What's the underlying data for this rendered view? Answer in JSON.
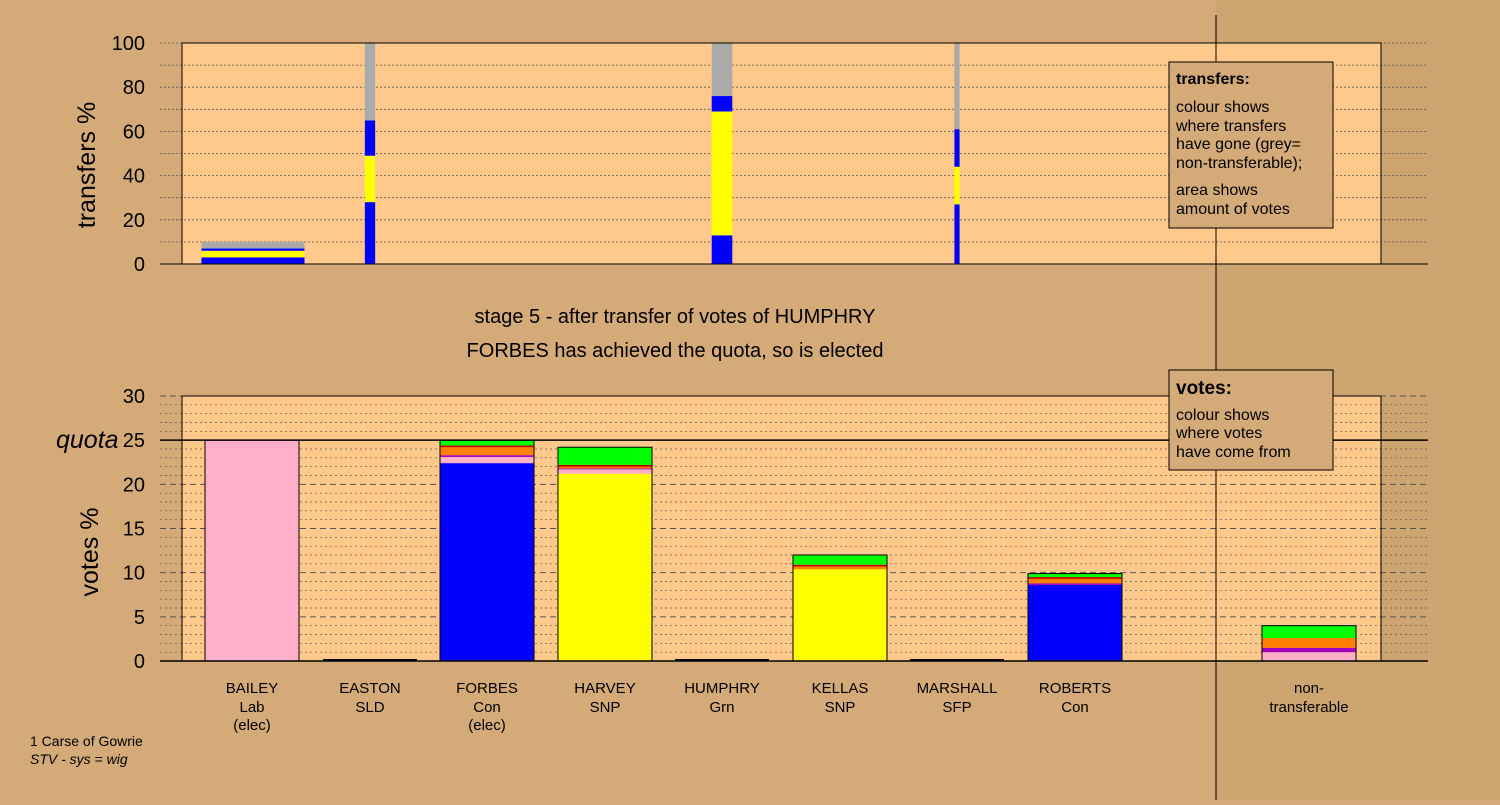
{
  "colors": {
    "background": "#d4aa78",
    "plot_bg": "#ffc98b",
    "Con": "#0000ff",
    "SNP": "#ffff00",
    "Lab": "#ffb0c8",
    "Grn": "#00ff00",
    "SFP": "#ff8000",
    "SLD": "#c00000",
    "other": "#a000c0",
    "nontransferable": "#aaaaaa"
  },
  "caption": {
    "line1": "stage 5 - after transfer of votes of HUMPHRY",
    "line2": "FORBES has achieved the quota, so is elected"
  },
  "legend_transfers": {
    "heading": "transfers:",
    "lines": [
      "colour shows",
      "where transfers",
      "have gone (grey=",
      "non-transferable);",
      "area shows",
      "amount of votes"
    ]
  },
  "legend_votes": {
    "heading": "votes:",
    "lines": [
      "colour shows",
      "where votes",
      "have come from"
    ]
  },
  "footer": {
    "line1": "1 Carse of Gowrie",
    "line2": "STV - sys = wig"
  },
  "candidates": [
    {
      "name": "BAILEY",
      "party": "Lab",
      "status": "(elec)"
    },
    {
      "name": "EASTON",
      "party": "SLD",
      "status": ""
    },
    {
      "name": "FORBES",
      "party": "Con",
      "status": "(elec)"
    },
    {
      "name": "HARVEY",
      "party": "SNP",
      "status": ""
    },
    {
      "name": "HUMPHRY",
      "party": "Grn",
      "status": ""
    },
    {
      "name": "KELLAS",
      "party": "SNP",
      "status": ""
    },
    {
      "name": "MARSHALL",
      "party": "SFP",
      "status": ""
    },
    {
      "name": "ROBERTS",
      "party": "Con",
      "status": ""
    }
  ],
  "nontransferable_label": {
    "line1": "non-",
    "line2": "transferable"
  },
  "chart_data": [
    {
      "type": "bar",
      "ylabel": "transfers %",
      "ylim": [
        0,
        100
      ],
      "yticks": [
        0,
        20,
        40,
        60,
        80,
        100
      ],
      "grid": true,
      "bars": [
        {
          "candidate": "BAILEY",
          "width_share": 0.1,
          "segments": [
            {
              "color": "Con",
              "value": 3
            },
            {
              "color": "SNP",
              "value": 3
            },
            {
              "color": "Con",
              "value": 1
            },
            {
              "color": "nontransferable",
              "value": 3
            }
          ]
        },
        {
          "candidate": "EASTON",
          "width_share": 0.01,
          "segments": [
            {
              "color": "Con",
              "value": 28
            },
            {
              "color": "SNP",
              "value": 21
            },
            {
              "color": "Con",
              "value": 16
            },
            {
              "color": "nontransferable",
              "value": 35
            }
          ]
        },
        {
          "candidate": "HUMPHRY",
          "width_share": 0.02,
          "segments": [
            {
              "color": "Con",
              "value": 13
            },
            {
              "color": "SNP",
              "value": 56
            },
            {
              "color": "Con",
              "value": 7
            },
            {
              "color": "nontransferable",
              "value": 24
            }
          ]
        },
        {
          "candidate": "MARSHALL",
          "width_share": 0.005,
          "segments": [
            {
              "color": "Con",
              "value": 27
            },
            {
              "color": "SNP",
              "value": 17
            },
            {
              "color": "Con",
              "value": 17
            },
            {
              "color": "nontransferable",
              "value": 39
            }
          ]
        }
      ]
    },
    {
      "type": "bar",
      "ylabel": "votes %",
      "ylim": [
        0,
        30
      ],
      "yticks": [
        0,
        5,
        10,
        15,
        20,
        25,
        30
      ],
      "quota": 25,
      "quota_label": "quota",
      "grid": true,
      "bars": [
        {
          "candidate": "BAILEY",
          "segments": [
            {
              "color": "Lab",
              "value": 25
            }
          ]
        },
        {
          "candidate": "EASTON",
          "segments": [
            {
              "color": "SLD",
              "value": 0
            }
          ]
        },
        {
          "candidate": "FORBES",
          "segments": [
            {
              "color": "Con",
              "value": 22.4
            },
            {
              "color": "Lab",
              "value": 0.7
            },
            {
              "color": "other",
              "value": 0.2
            },
            {
              "color": "SFP",
              "value": 0.9
            },
            {
              "color": "SLD",
              "value": 0.2
            },
            {
              "color": "Grn",
              "value": 0.6
            }
          ]
        },
        {
          "candidate": "HARVEY",
          "segments": [
            {
              "color": "SNP",
              "value": 21.2
            },
            {
              "color": "Lab",
              "value": 0.5
            },
            {
              "color": "other",
              "value": 0.1
            },
            {
              "color": "SFP",
              "value": 0.2
            },
            {
              "color": "SLD",
              "value": 0.2
            },
            {
              "color": "Grn",
              "value": 2.0
            }
          ]
        },
        {
          "candidate": "HUMPHRY",
          "segments": [
            {
              "color": "Grn",
              "value": 0
            }
          ]
        },
        {
          "candidate": "KELLAS",
          "segments": [
            {
              "color": "SNP",
              "value": 10.4
            },
            {
              "color": "SFP",
              "value": 0.3
            },
            {
              "color": "SLD",
              "value": 0.2
            },
            {
              "color": "Grn",
              "value": 1.1
            }
          ]
        },
        {
          "candidate": "MARSHALL",
          "segments": [
            {
              "color": "SFP",
              "value": 0
            }
          ]
        },
        {
          "candidate": "ROBERTS",
          "segments": [
            {
              "color": "Con",
              "value": 8.6
            },
            {
              "color": "other",
              "value": 0.2
            },
            {
              "color": "SFP",
              "value": 0.5
            },
            {
              "color": "SLD",
              "value": 0.2
            },
            {
              "color": "Grn",
              "value": 0.4
            }
          ]
        },
        {
          "candidate": "non-transferable",
          "segments": [
            {
              "color": "Lab",
              "value": 1.0
            },
            {
              "color": "other",
              "value": 0.5
            },
            {
              "color": "SFP",
              "value": 1.1
            },
            {
              "color": "Grn",
              "value": 1.4
            }
          ]
        }
      ]
    }
  ]
}
